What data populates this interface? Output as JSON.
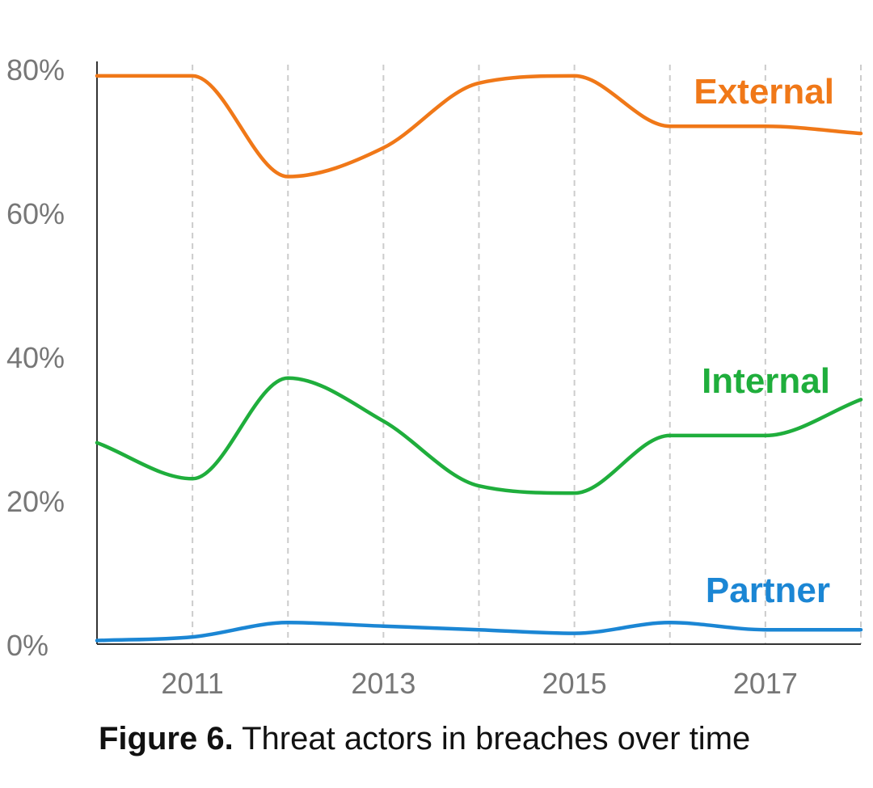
{
  "chart_data": {
    "type": "line",
    "x": [
      2010,
      2011,
      2012,
      2013,
      2014,
      2015,
      2016,
      2017,
      2018
    ],
    "x_tick_labels": [
      "2011",
      "2013",
      "2015",
      "2017"
    ],
    "x_tick_values": [
      2011,
      2013,
      2015,
      2017
    ],
    "y_tick_labels": [
      "0%",
      "20%",
      "40%",
      "60%",
      "80%"
    ],
    "y_tick_values": [
      0,
      20,
      40,
      60,
      80
    ],
    "ylim": [
      0,
      80
    ],
    "xlim": [
      2010,
      2018
    ],
    "grid": "vertical dashed",
    "series": [
      {
        "name": "External",
        "color": "#f07818",
        "values": [
          79,
          79,
          65,
          69,
          78,
          79,
          72,
          72,
          71
        ]
      },
      {
        "name": "Internal",
        "color": "#1fae3c",
        "values": [
          28,
          23,
          37,
          31,
          22,
          21,
          29,
          29,
          34
        ]
      },
      {
        "name": "Partner",
        "color": "#1b86d4",
        "values": [
          0.5,
          1,
          3,
          2.5,
          2,
          1.5,
          3,
          2,
          2
        ]
      }
    ]
  },
  "caption": {
    "bold": "Figure 6.",
    "text": " Threat actors in breaches over time"
  }
}
